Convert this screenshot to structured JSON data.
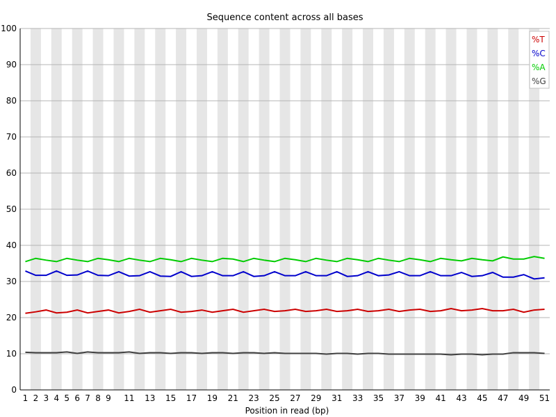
{
  "chart_data": {
    "type": "line",
    "title": "Sequence content across all bases",
    "xlabel": "Position in read (bp)",
    "ylabel": "",
    "ylim": [
      0,
      100
    ],
    "y_ticks": [
      0,
      10,
      20,
      30,
      40,
      50,
      60,
      70,
      80,
      90,
      100
    ],
    "x_tick_labels": [
      1,
      2,
      3,
      4,
      5,
      6,
      7,
      8,
      9,
      11,
      13,
      15,
      17,
      19,
      21,
      23,
      25,
      27,
      29,
      31,
      33,
      35,
      37,
      39,
      41,
      43,
      45,
      47,
      49,
      51
    ],
    "x": [
      1,
      2,
      3,
      4,
      5,
      6,
      7,
      8,
      9,
      10,
      11,
      12,
      13,
      14,
      15,
      16,
      17,
      18,
      19,
      20,
      21,
      22,
      23,
      24,
      25,
      26,
      27,
      28,
      29,
      30,
      31,
      32,
      33,
      34,
      35,
      36,
      37,
      38,
      39,
      40,
      41,
      42,
      43,
      44,
      45,
      46,
      47,
      48,
      49,
      50,
      51
    ],
    "grid": true,
    "alternating_column_shading": true,
    "legend_position": "top-right",
    "series": [
      {
        "name": "%T",
        "color": "#cc0000",
        "values": [
          21.2,
          21.6,
          22.1,
          21.3,
          21.5,
          22.1,
          21.3,
          21.7,
          22.1,
          21.3,
          21.7,
          22.3,
          21.5,
          21.9,
          22.3,
          21.5,
          21.7,
          22.1,
          21.5,
          21.9,
          22.3,
          21.5,
          21.9,
          22.3,
          21.7,
          21.9,
          22.3,
          21.7,
          21.9,
          22.3,
          21.7,
          21.9,
          22.3,
          21.7,
          21.9,
          22.3,
          21.7,
          22.1,
          22.3,
          21.7,
          21.9,
          22.5,
          21.9,
          22.1,
          22.5,
          21.9,
          21.9,
          22.3,
          21.5,
          22.1,
          22.3
        ]
      },
      {
        "name": "%C",
        "color": "#0000cc",
        "values": [
          32.9,
          31.7,
          31.7,
          32.9,
          31.7,
          31.8,
          32.9,
          31.7,
          31.6,
          32.7,
          31.5,
          31.6,
          32.7,
          31.5,
          31.4,
          32.7,
          31.4,
          31.6,
          32.7,
          31.6,
          31.6,
          32.7,
          31.4,
          31.6,
          32.7,
          31.6,
          31.6,
          32.7,
          31.6,
          31.6,
          32.7,
          31.4,
          31.6,
          32.7,
          31.6,
          31.8,
          32.7,
          31.6,
          31.6,
          32.7,
          31.6,
          31.6,
          32.5,
          31.4,
          31.6,
          32.5,
          31.2,
          31.2,
          31.9,
          30.7,
          31.0
        ]
      },
      {
        "name": "%A",
        "color": "#00cc00",
        "values": [
          35.5,
          36.4,
          35.9,
          35.5,
          36.4,
          35.9,
          35.5,
          36.4,
          36.0,
          35.5,
          36.4,
          35.9,
          35.5,
          36.4,
          36.0,
          35.5,
          36.4,
          35.9,
          35.5,
          36.4,
          36.2,
          35.5,
          36.4,
          35.9,
          35.5,
          36.4,
          36.0,
          35.5,
          36.4,
          35.9,
          35.5,
          36.4,
          36.0,
          35.5,
          36.4,
          35.9,
          35.5,
          36.4,
          36.0,
          35.5,
          36.4,
          36.0,
          35.7,
          36.4,
          36.0,
          35.7,
          36.8,
          36.2,
          36.2,
          36.9,
          36.4
        ]
      },
      {
        "name": "%G",
        "color": "#404040",
        "values": [
          10.4,
          10.3,
          10.3,
          10.3,
          10.5,
          10.1,
          10.5,
          10.3,
          10.3,
          10.3,
          10.5,
          10.1,
          10.3,
          10.3,
          10.1,
          10.3,
          10.3,
          10.1,
          10.3,
          10.3,
          10.1,
          10.3,
          10.3,
          10.1,
          10.3,
          10.1,
          10.1,
          10.1,
          10.1,
          9.9,
          10.1,
          10.1,
          9.9,
          10.1,
          10.1,
          9.9,
          9.9,
          9.9,
          9.9,
          9.9,
          9.9,
          9.7,
          9.9,
          9.9,
          9.7,
          9.9,
          9.9,
          10.3,
          10.3,
          10.3,
          10.1
        ]
      }
    ]
  }
}
